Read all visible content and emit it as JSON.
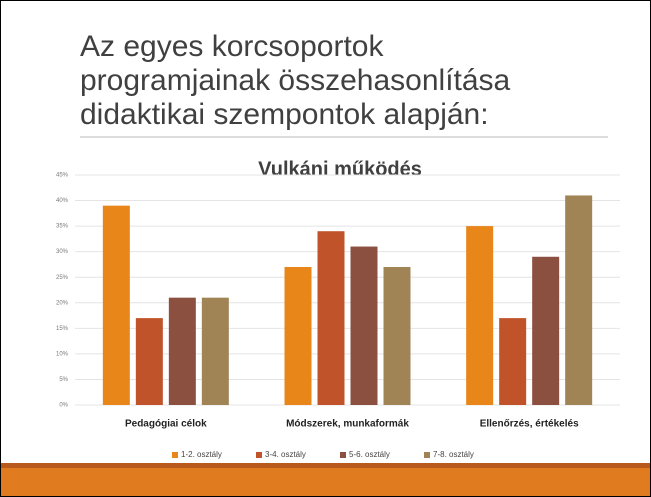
{
  "heading": [
    "Az egyes korcsoportok",
    "programjainak összehasonlítása",
    "didaktikai szempontok alapján:"
  ],
  "chart_data": {
    "type": "bar",
    "title": "Vulkáni működés",
    "categories": [
      "Pedagógiai célok",
      "Módszerek, munkaformák",
      "Ellenőrzés, értékelés"
    ],
    "series": [
      {
        "name": "1-2. osztály",
        "color": "#e8861a",
        "values": [
          39,
          27,
          35
        ]
      },
      {
        "name": "3-4. osztály",
        "color": "#c0532a",
        "values": [
          17,
          34,
          17
        ]
      },
      {
        "name": "5-6. osztály",
        "color": "#8b5040",
        "values": [
          21,
          31,
          29
        ]
      },
      {
        "name": "7-8. osztály",
        "color": "#a08456",
        "values": [
          21,
          27,
          41
        ]
      }
    ],
    "ylim": [
      0,
      45
    ],
    "yticks": [
      {
        "value": 0,
        "label": "0%"
      },
      {
        "value": 5,
        "label": "5%"
      },
      {
        "value": 10,
        "label": "10%"
      },
      {
        "value": 15,
        "label": "15%"
      },
      {
        "value": 20,
        "label": "20%"
      },
      {
        "value": 25,
        "label": "25%"
      },
      {
        "value": 30,
        "label": "30%"
      },
      {
        "value": 35,
        "label": "35%"
      },
      {
        "value": 40,
        "label": "40%"
      },
      {
        "value": 45,
        "label": "45%"
      }
    ],
    "grid": true,
    "legend": "bottom"
  }
}
